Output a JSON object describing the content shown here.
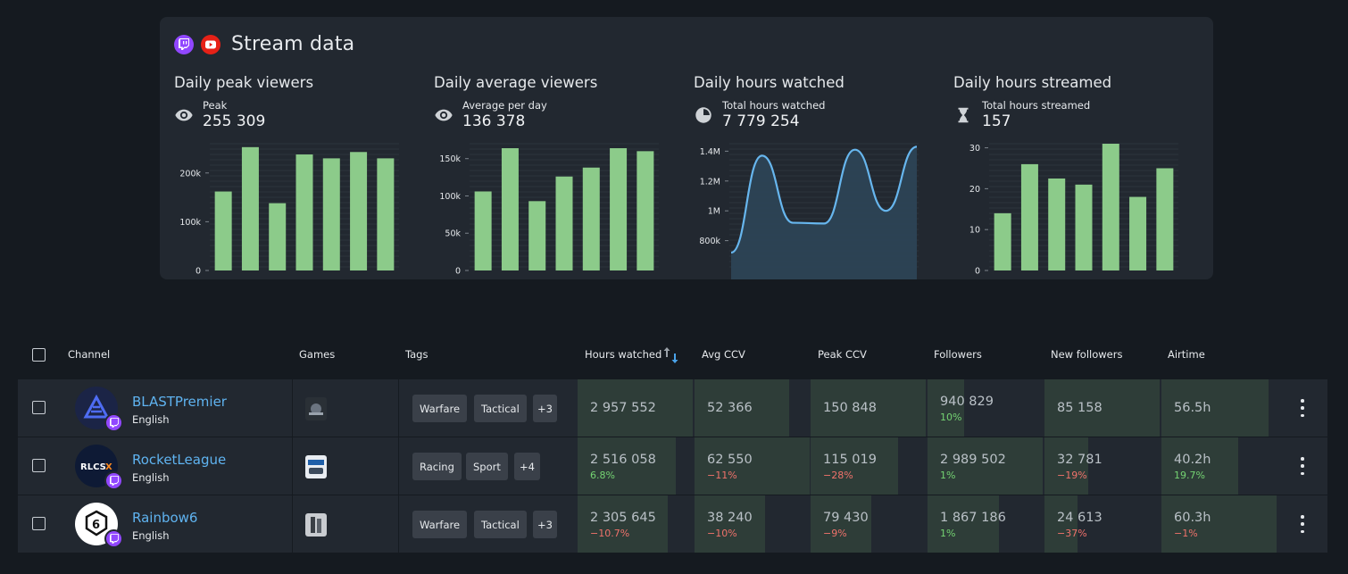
{
  "card": {
    "title": "Stream data",
    "platforms": [
      "twitch-icon",
      "youtube-icon"
    ]
  },
  "stats": [
    {
      "title": "Daily peak viewers",
      "icon": "eye-icon",
      "label": "Peak",
      "value": "255 309",
      "chart_data": {
        "type": "bar",
        "values": [
          162000,
          253000,
          138000,
          238000,
          230000,
          243000,
          230000
        ],
        "ylim": [
          0,
          260000
        ],
        "ticks": [
          {
            "v": 0,
            "label": "0"
          },
          {
            "v": 100000,
            "label": "100k"
          },
          {
            "v": 200000,
            "label": "200k"
          }
        ],
        "color": "#8ccb8a"
      }
    },
    {
      "title": "Daily average viewers",
      "icon": "eye-icon",
      "label": "Average per day",
      "value": "136 378",
      "chart_data": {
        "type": "bar",
        "values": [
          106000,
          164000,
          93000,
          126000,
          138000,
          164000,
          160000
        ],
        "ylim": [
          0,
          170000
        ],
        "ticks": [
          {
            "v": 0,
            "label": "0"
          },
          {
            "v": 50000,
            "label": "50k"
          },
          {
            "v": 100000,
            "label": "100k"
          },
          {
            "v": 150000,
            "label": "150k"
          }
        ],
        "color": "#8ccb8a"
      }
    },
    {
      "title": "Daily hours watched",
      "icon": "pie-clock-icon",
      "label": "Total hours watched",
      "value": "7 779 254",
      "chart_data": {
        "type": "area",
        "values": [
          720000,
          1370000,
          920000,
          915000,
          1410000,
          1000000,
          1430000
        ],
        "ylim": [
          600000,
          1450000
        ],
        "ticks": [
          {
            "v": 800000,
            "label": "800k"
          },
          {
            "v": 1000000,
            "label": "1M"
          },
          {
            "v": 1200000,
            "label": "1.2M"
          },
          {
            "v": 1400000,
            "label": "1.4M"
          }
        ],
        "color": "#67b6ee",
        "fill": "#2d4558"
      }
    },
    {
      "title": "Daily hours streamed",
      "icon": "hourglass-icon",
      "label": "Total hours streamed",
      "value": "157",
      "chart_data": {
        "type": "bar",
        "values": [
          14,
          26,
          22.5,
          21,
          31,
          18,
          25
        ],
        "ylim": [
          0,
          31
        ],
        "ticks": [
          {
            "v": 0,
            "label": "0"
          },
          {
            "v": 10,
            "label": "10"
          },
          {
            "v": 20,
            "label": "20"
          },
          {
            "v": 30,
            "label": "30"
          }
        ],
        "color": "#8ccb8a"
      }
    }
  ],
  "table": {
    "headers": {
      "channel": "Channel",
      "games": "Games",
      "tags": "Tags",
      "hours_watched": "Hours watched",
      "avg_ccv": "Avg CCV",
      "peak_ccv": "Peak CCV",
      "followers": "Followers",
      "new_followers": "New followers",
      "airtime": "Airtime"
    },
    "rows": [
      {
        "name": "BLASTPremier",
        "language": "English",
        "tags": [
          "Warfare",
          "Tactical",
          "+3"
        ],
        "metrics": [
          {
            "value": "2 957 552",
            "change": "",
            "fill": 1.0
          },
          {
            "value": "52 366",
            "change": "",
            "fill": 0.82
          },
          {
            "value": "150 848",
            "change": "",
            "fill": 1.0
          },
          {
            "value": "940 829",
            "change": "10%",
            "dir": "pos",
            "fill": 0.32
          },
          {
            "value": "85 158",
            "change": "",
            "fill": 1.0
          },
          {
            "value": "56.5h",
            "change": "",
            "fill": 0.93
          }
        ]
      },
      {
        "name": "RocketLeague",
        "language": "English",
        "tags": [
          "Racing",
          "Sport",
          "+4"
        ],
        "metrics": [
          {
            "value": "2 516 058",
            "change": "6.8%",
            "dir": "pos",
            "fill": 0.85
          },
          {
            "value": "62 550",
            "change": "−11%",
            "dir": "neg",
            "fill": 1.0
          },
          {
            "value": "115 019",
            "change": "−28%",
            "dir": "neg",
            "fill": 0.76
          },
          {
            "value": "2 989 502",
            "change": "1%",
            "dir": "pos",
            "fill": 1.0
          },
          {
            "value": "32 781",
            "change": "−19%",
            "dir": "neg",
            "fill": 0.38
          },
          {
            "value": "40.2h",
            "change": "19.7%",
            "dir": "pos",
            "fill": 0.67
          }
        ]
      },
      {
        "name": "Rainbow6",
        "language": "English",
        "tags": [
          "Warfare",
          "Tactical",
          "+3"
        ],
        "metrics": [
          {
            "value": "2 305 645",
            "change": "−10.7%",
            "dir": "neg",
            "fill": 0.78
          },
          {
            "value": "38 240",
            "change": "−10%",
            "dir": "neg",
            "fill": 0.61
          },
          {
            "value": "79 430",
            "change": "−9%",
            "dir": "neg",
            "fill": 0.53
          },
          {
            "value": "1 867 186",
            "change": "1%",
            "dir": "pos",
            "fill": 0.62
          },
          {
            "value": "24 613",
            "change": "−37%",
            "dir": "neg",
            "fill": 0.29
          },
          {
            "value": "60.3h",
            "change": "−1%",
            "dir": "neg",
            "fill": 1.0
          }
        ]
      }
    ]
  }
}
